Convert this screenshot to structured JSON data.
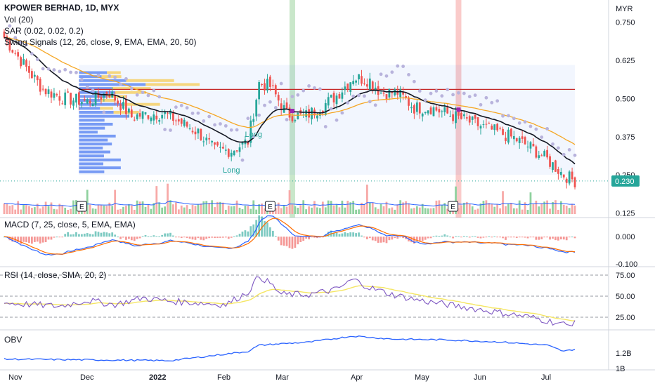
{
  "legend": {
    "title": "KPOWER BERHAD, 1D, MYX",
    "vol": "Vol (20)",
    "sar": "SAR (0.02, 0.02, 0.2)",
    "swing": "Swing Signals (12, 26, close, 9, EMA, EMA, 20, 50)",
    "macd": "MACD (7, 25, close, 5, EMA, EMA)",
    "rsi": "RSI (14, close, SMA, 20, 2)",
    "obv": "OBV"
  },
  "currency": "MYR",
  "last_price_label": "0.230",
  "signal_labels": [
    "Long",
    "Long"
  ],
  "earnings_marker": "E",
  "colors": {
    "up": "#26a69a",
    "down": "#ef5350",
    "volume_up": "#8fd19e",
    "volume_down": "#f7a9a7",
    "ema_fast": "#131722",
    "ema_slow": "#f5a623",
    "sar_dots": "#b8b3dc",
    "resistance": "#c62828",
    "profile_blue": "#4f7cf0",
    "profile_yellow": "#f7c948",
    "macd_line": "#2962ff",
    "signal_line": "#ff6d00",
    "rsi_line": "#7e57c2",
    "rsi_ma": "#f5e663",
    "obv_line": "#2962ff",
    "last_price_bg": "#26a69a"
  },
  "chart_data": [
    {
      "type": "candlestick",
      "title": "KPOWER BERHAD, 1D, MYX",
      "x_ticks": [
        "Nov",
        "Dec",
        "2022",
        "Feb",
        "Mar",
        "Apr",
        "May",
        "Jun",
        "Jul"
      ],
      "y_ticks": [
        0.125,
        0.25,
        0.375,
        0.5,
        0.625,
        0.75
      ],
      "y_tick_labels": [
        "0.125",
        "0.250",
        "0.375",
        "0.500",
        "0.625",
        "0.750"
      ],
      "ylim": [
        0.11,
        0.8
      ],
      "resistance_level": 0.53,
      "last_price": 0.23,
      "close_anchors": [
        [
          0,
          0.7
        ],
        [
          8,
          0.6
        ],
        [
          14,
          0.53
        ],
        [
          22,
          0.5
        ],
        [
          30,
          0.49
        ],
        [
          38,
          0.52
        ],
        [
          46,
          0.44
        ],
        [
          52,
          0.45
        ],
        [
          58,
          0.45
        ],
        [
          64,
          0.42
        ],
        [
          70,
          0.39
        ],
        [
          76,
          0.33
        ],
        [
          82,
          0.33
        ],
        [
          88,
          0.36
        ],
        [
          92,
          0.55
        ],
        [
          96,
          0.54
        ],
        [
          102,
          0.45
        ],
        [
          108,
          0.44
        ],
        [
          114,
          0.47
        ],
        [
          120,
          0.51
        ],
        [
          126,
          0.57
        ],
        [
          132,
          0.56
        ],
        [
          136,
          0.52
        ],
        [
          142,
          0.52
        ],
        [
          148,
          0.47
        ],
        [
          154,
          0.47
        ],
        [
          160,
          0.45
        ],
        [
          166,
          0.43
        ],
        [
          172,
          0.41
        ],
        [
          178,
          0.39
        ],
        [
          184,
          0.37
        ],
        [
          190,
          0.34
        ],
        [
          196,
          0.3
        ],
        [
          202,
          0.25
        ],
        [
          206,
          0.23
        ]
      ],
      "highlighted_bars": [
        104,
        164
      ],
      "earnings_bars": [
        28,
        96,
        162
      ],
      "long_signal_bars": [
        82,
        90
      ]
    },
    {
      "type": "line",
      "title": "MACD (7, 25, close, 5, EMA, EMA)",
      "y_ticks": [
        0.0,
        -0.1
      ],
      "y_tick_labels": [
        "0.000",
        "-0.100"
      ],
      "ylim": [
        -0.11,
        0.07
      ]
    },
    {
      "type": "line",
      "title": "RSI (14, close, SMA, 20, 2)",
      "y_ticks": [
        75,
        50,
        25
      ],
      "y_tick_labels": [
        "75.00",
        "50.00",
        "25.00"
      ],
      "ylim": [
        10,
        85
      ],
      "rsi_anchors": [
        [
          0,
          42
        ],
        [
          10,
          40
        ],
        [
          20,
          38
        ],
        [
          30,
          45
        ],
        [
          40,
          40
        ],
        [
          50,
          48
        ],
        [
          60,
          44
        ],
        [
          70,
          42
        ],
        [
          80,
          40
        ],
        [
          88,
          55
        ],
        [
          92,
          74
        ],
        [
          96,
          65
        ],
        [
          100,
          52
        ],
        [
          110,
          52
        ],
        [
          120,
          58
        ],
        [
          126,
          70
        ],
        [
          132,
          60
        ],
        [
          140,
          52
        ],
        [
          150,
          45
        ],
        [
          160,
          40
        ],
        [
          170,
          35
        ],
        [
          180,
          30
        ],
        [
          190,
          25
        ],
        [
          200,
          18
        ],
        [
          204,
          15
        ],
        [
          206,
          22
        ]
      ]
    },
    {
      "type": "line",
      "title": "OBV",
      "y_ticks": [
        1.2,
        1.0
      ],
      "y_tick_labels": [
        "1.2B",
        "1B"
      ],
      "ylim": [
        0.98,
        1.5
      ],
      "obv_anchors": [
        [
          0,
          1.12
        ],
        [
          30,
          1.11
        ],
        [
          60,
          1.1
        ],
        [
          88,
          1.22
        ],
        [
          92,
          1.3
        ],
        [
          100,
          1.32
        ],
        [
          110,
          1.34
        ],
        [
          126,
          1.42
        ],
        [
          140,
          1.38
        ],
        [
          160,
          1.37
        ],
        [
          180,
          1.34
        ],
        [
          196,
          1.3
        ],
        [
          202,
          1.22
        ],
        [
          206,
          1.25
        ]
      ]
    }
  ]
}
